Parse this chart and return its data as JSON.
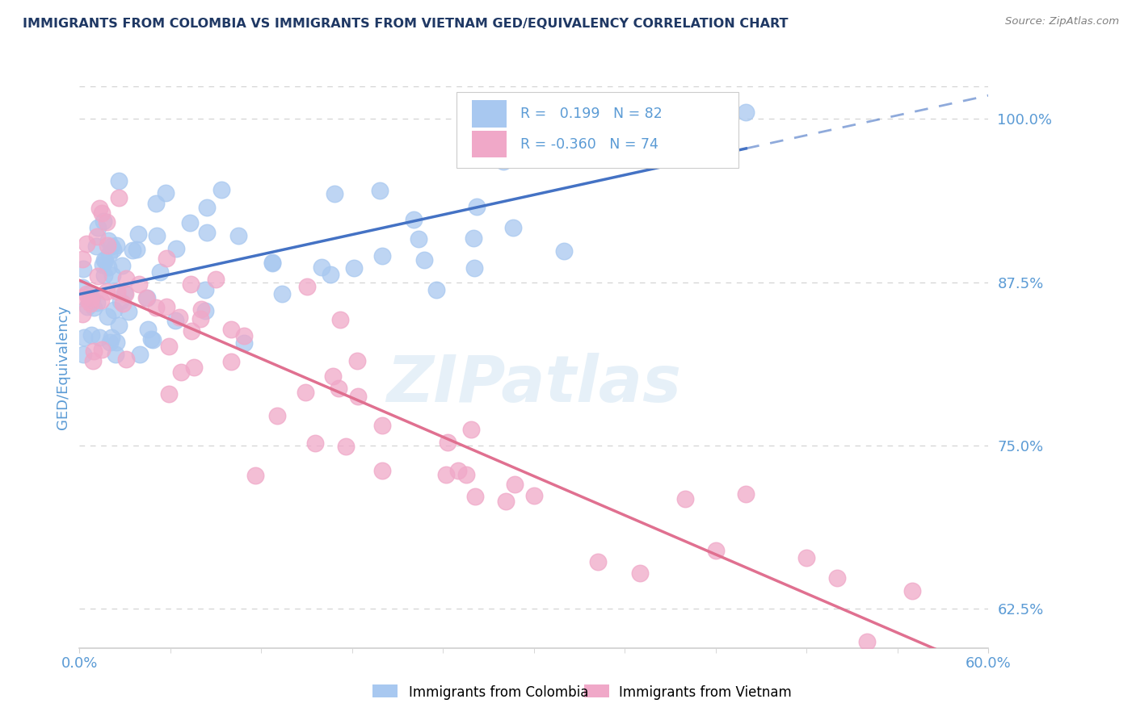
{
  "title": "IMMIGRANTS FROM COLOMBIA VS IMMIGRANTS FROM VIETNAM GED/EQUIVALENCY CORRELATION CHART",
  "source": "Source: ZipAtlas.com",
  "ylabel": "GED/Equivalency",
  "x_min": 0.0,
  "x_max": 0.6,
  "y_min": 0.595,
  "y_max": 1.025,
  "watermark": "ZIPatlas",
  "legend_colombia_r": "0.199",
  "legend_colombia_n": "82",
  "legend_vietnam_r": "-0.360",
  "legend_vietnam_n": "74",
  "color_colombia": "#a8c8f0",
  "color_vietnam": "#f0a8c8",
  "color_line_colombia": "#4472c4",
  "color_line_vietnam": "#e07090",
  "color_axis_label": "#5b9bd5",
  "color_title": "#1f3864",
  "color_grid": "#d0d0d0",
  "color_source": "#808080"
}
